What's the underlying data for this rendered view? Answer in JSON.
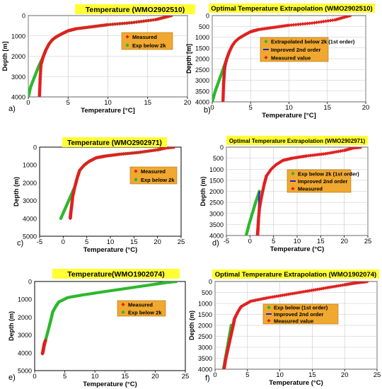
{
  "chart_data": [
    {
      "type": "scatter",
      "panel_label": "a)",
      "title": "Temperature (WMO2902510)",
      "xlabel": "Temperature [°C]",
      "ylabel": "Depth [m]",
      "xlim": [
        0,
        20
      ],
      "ylim": [
        4000,
        0
      ],
      "xticks": [
        0,
        5,
        10,
        15,
        20
      ],
      "yticks": [
        0,
        1000,
        2000,
        3000,
        4000
      ],
      "xtick_labels": [
        "0",
        "5",
        "10",
        "15",
        "20"
      ],
      "ytick_labels": [
        "0",
        "1000",
        "2000",
        "3000",
        "4000"
      ],
      "grid": true,
      "legend_position": "center-right",
      "series": [
        {
          "name": "Measured",
          "color": "#e02020",
          "marker": "diamond",
          "x": [
            18.0,
            16.0,
            13.0,
            10.0,
            8.0,
            6.0,
            5.0,
            4.2,
            3.5,
            3.0,
            2.6,
            2.2,
            1.9,
            1.6,
            1.5,
            1.45,
            1.4
          ],
          "y": [
            0,
            200,
            350,
            450,
            550,
            650,
            750,
            900,
            1050,
            1200,
            1400,
            1700,
            2000,
            2400,
            3000,
            3500,
            4000
          ]
        },
        {
          "name": "Exp below 2k",
          "color": "#2db82d",
          "marker": "circle",
          "x": [
            18.0,
            16.0,
            13.0,
            10.0,
            8.0,
            6.0,
            5.0,
            4.2,
            3.5,
            3.0,
            2.6,
            2.2,
            1.9,
            1.3,
            0.8,
            0.3,
            0.0
          ],
          "y": [
            0,
            200,
            350,
            450,
            550,
            650,
            750,
            900,
            1050,
            1200,
            1400,
            1700,
            2000,
            2500,
            3000,
            3500,
            4000
          ]
        }
      ]
    },
    {
      "type": "scatter",
      "panel_label": "b)",
      "title": "Optimal Temperature Extrapolation (WMO2902510)",
      "xlabel": "Temperature [°C]",
      "ylabel": "Depth [m]",
      "xlim": [
        0,
        20
      ],
      "ylim": [
        4000,
        0
      ],
      "xticks": [
        0,
        5,
        10,
        15,
        20
      ],
      "yticks": [
        0,
        500,
        1000,
        1500,
        2000,
        2500,
        3000,
        3500,
        4000
      ],
      "xtick_labels": [
        "0",
        "5",
        "10",
        "15",
        "20"
      ],
      "ytick_labels": [
        "0",
        "500",
        "1000",
        "1500",
        "2000",
        "2500",
        "3000",
        "3500",
        "4000"
      ],
      "grid": true,
      "legend_position": "center-right",
      "series": [
        {
          "name": "Extrapolated below 2k (1st order)",
          "color": "#2db82d",
          "marker": "circle",
          "x": [
            1.9,
            1.4,
            0.9,
            0.4,
            0.0
          ],
          "y": [
            2000,
            2500,
            3000,
            3500,
            4000
          ]
        },
        {
          "name": "Improved 2nd order",
          "color": "#2222cc",
          "marker": "line",
          "x": [
            1.9,
            1.7,
            1.6,
            1.5,
            1.45
          ],
          "y": [
            2000,
            2500,
            3000,
            3500,
            4000
          ]
        },
        {
          "name": "Measured value",
          "color": "#e02020",
          "marker": "diamond",
          "x": [
            18.0,
            16.0,
            13.0,
            10.0,
            8.0,
            6.0,
            5.0,
            4.2,
            3.5,
            3.0,
            2.6,
            2.2,
            1.9,
            1.6,
            1.5,
            1.45,
            1.4
          ],
          "y": [
            0,
            200,
            350,
            450,
            550,
            650,
            750,
            900,
            1050,
            1200,
            1400,
            1700,
            2000,
            2400,
            3000,
            3500,
            4000
          ]
        }
      ]
    },
    {
      "type": "scatter",
      "panel_label": "c)",
      "title": "Temperature (WMO2902971)",
      "xlabel": "Temperature (°C)",
      "ylabel": "Depth (m)",
      "xlim": [
        -5,
        25
      ],
      "ylim": [
        5000,
        0
      ],
      "xticks": [
        -5,
        0,
        5,
        10,
        15,
        20,
        25
      ],
      "yticks": [
        0,
        1000,
        2000,
        3000,
        4000,
        5000
      ],
      "xtick_labels": [
        "-5",
        "0",
        "5",
        "10",
        "15",
        "20",
        "25"
      ],
      "ytick_labels": [
        "0",
        "1000",
        "2000",
        "3000",
        "4000",
        "5000"
      ],
      "grid": false,
      "legend_position": "center-right",
      "series": [
        {
          "name": "Measured",
          "color": "#e02020",
          "marker": "diamond",
          "x": [
            23.5,
            22.0,
            20.0,
            16.0,
            12.0,
            9.0,
            7.0,
            5.5,
            4.5,
            3.5,
            3.0,
            2.5,
            2.0,
            1.8,
            1.6,
            1.5
          ],
          "y": [
            0,
            30,
            150,
            300,
            400,
            500,
            600,
            800,
            1000,
            1300,
            1700,
            2200,
            2800,
            3300,
            3700,
            4000
          ]
        },
        {
          "name": "Exp below 2k",
          "color": "#2db82d",
          "marker": "circle",
          "x": [
            23.5,
            22.0,
            20.0,
            16.0,
            12.0,
            9.0,
            7.0,
            5.5,
            4.5,
            3.5,
            3.0,
            2.5,
            1.5,
            0.5,
            -0.5
          ],
          "y": [
            0,
            30,
            150,
            300,
            400,
            500,
            600,
            800,
            1000,
            1300,
            1700,
            2200,
            2800,
            3400,
            4000
          ]
        }
      ]
    },
    {
      "type": "scatter",
      "panel_label": "d)",
      "title": "Optimal Temperature Extrapolation (WMO2902971)",
      "xlabel": "Temperature (°C)",
      "ylabel": "Depth (m)",
      "xlim": [
        -5,
        25
      ],
      "ylim": [
        4000,
        0
      ],
      "xticks": [
        -5,
        0,
        5,
        10,
        15,
        20,
        25
      ],
      "yticks": [
        0,
        500,
        1000,
        1500,
        2000,
        2500,
        3000,
        3500,
        4000
      ],
      "xtick_labels": [
        "-5",
        "0",
        "5",
        "10",
        "15",
        "20",
        "25"
      ],
      "ytick_labels": [
        "0",
        "500",
        "1000",
        "1500",
        "2000",
        "2500",
        "3000",
        "3500",
        "4000"
      ],
      "grid": true,
      "legend_position": "center-right",
      "series": [
        {
          "name": "Exp below 2k (1st order)",
          "color": "#2db82d",
          "marker": "circle",
          "x": [
            2.0,
            1.2,
            0.5,
            -0.2,
            -0.8
          ],
          "y": [
            2000,
            2500,
            3000,
            3500,
            4000
          ]
        },
        {
          "name": "Improved 2nd order",
          "color": "#2222cc",
          "marker": "line",
          "x": [
            2.0,
            1.9,
            1.8,
            1.7,
            1.6
          ],
          "y": [
            2000,
            2500,
            3000,
            3500,
            4000
          ]
        },
        {
          "name": "Measured",
          "color": "#e02020",
          "marker": "diamond",
          "x": [
            23.5,
            22.0,
            20.0,
            16.0,
            12.0,
            9.0,
            7.0,
            5.5,
            4.5,
            3.5,
            3.0,
            2.5,
            2.0,
            1.8,
            1.7,
            1.6
          ],
          "y": [
            0,
            30,
            150,
            300,
            400,
            500,
            600,
            800,
            1000,
            1300,
            1700,
            2200,
            2800,
            3300,
            3700,
            4000
          ]
        }
      ]
    },
    {
      "type": "scatter",
      "panel_label": "e)",
      "title": "Temperature(WMO1902074)",
      "xlabel": "Temperature (°C)",
      "ylabel": "Depth (m)",
      "xlim": [
        0,
        25
      ],
      "ylim": [
        5000,
        0
      ],
      "xticks": [
        0,
        5,
        10,
        15,
        20,
        25
      ],
      "yticks": [
        0,
        1000,
        2000,
        3000,
        4000,
        5000
      ],
      "xtick_labels": [
        "0",
        "5",
        "10",
        "15",
        "20",
        "25"
      ],
      "ytick_labels": [
        "0",
        "1000",
        "2000",
        "3000",
        "4000",
        "5000"
      ],
      "grid": false,
      "legend_position": "top-right",
      "series": [
        {
          "name": "Measured",
          "color": "#e02020",
          "marker": "diamond",
          "x": [
            1.8,
            1.6,
            1.5,
            1.4,
            1.3
          ],
          "y": [
            3300,
            3500,
            3700,
            3900,
            4050
          ]
        },
        {
          "name": "Exp below 2k",
          "color": "#2db82d",
          "marker": "circle",
          "x": [
            23.5,
            22.0,
            20.0,
            17.0,
            14.0,
            11.0,
            8.0,
            5.5,
            4.0,
            3.5,
            3.0,
            2.8,
            2.5,
            2.2,
            1.8,
            1.5,
            1.3
          ],
          "y": [
            0,
            50,
            150,
            300,
            450,
            600,
            750,
            900,
            1150,
            1400,
            1700,
            2000,
            2400,
            2800,
            3300,
            3700,
            4050
          ]
        }
      ]
    },
    {
      "type": "scatter",
      "panel_label": "f)",
      "title": "Optimal Temperature Extrapolation (WMO1902074)",
      "xlabel": "Temperature (°C)",
      "ylabel": "Depth (m)",
      "xlim": [
        0,
        25
      ],
      "ylim": [
        4000,
        0
      ],
      "xticks": [
        0,
        5,
        10,
        15,
        20,
        25
      ],
      "yticks": [
        0,
        500,
        1000,
        1500,
        2000,
        2500,
        3000,
        3500,
        4000
      ],
      "xtick_labels": [
        "0",
        "5",
        "10",
        "15",
        "20",
        "25"
      ],
      "ytick_labels": [
        "0",
        "500",
        "1000",
        "1500",
        "2000",
        "2500",
        "3000",
        "3500",
        "4000"
      ],
      "grid": true,
      "legend_position": "center-right",
      "series": [
        {
          "name": "Exp below (1st order)",
          "color": "#2db82d",
          "marker": "circle",
          "x": [
            2.5,
            2.2,
            1.9,
            1.6,
            1.3
          ],
          "y": [
            2000,
            2500,
            3000,
            3500,
            4000
          ]
        },
        {
          "name": "Improved 2nd order",
          "color": "#2222cc",
          "marker": "line",
          "x": [
            23.0,
            20.0,
            17.0
          ],
          "y": [
            50,
            150,
            280
          ]
        },
        {
          "name": "Measured value",
          "color": "#e02020",
          "marker": "diamond",
          "x": [
            23.5,
            22.0,
            20.0,
            17.0,
            14.0,
            11.0,
            8.0,
            5.5,
            4.0,
            3.5,
            3.0,
            2.8,
            2.5,
            2.2,
            1.9,
            1.6,
            1.4
          ],
          "y": [
            0,
            50,
            150,
            300,
            450,
            600,
            750,
            900,
            1150,
            1400,
            1700,
            2000,
            2400,
            2800,
            3200,
            3600,
            4000
          ]
        }
      ]
    }
  ]
}
